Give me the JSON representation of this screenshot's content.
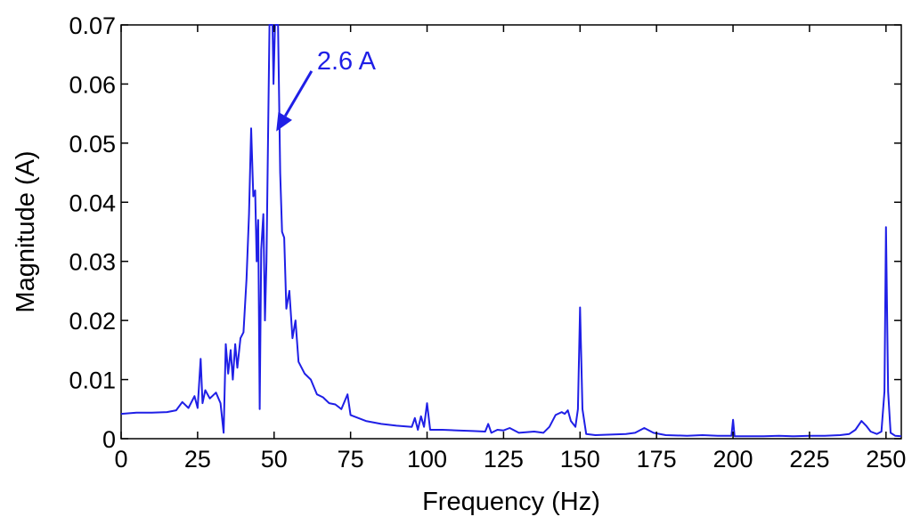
{
  "chart_data": {
    "type": "line",
    "title": "",
    "xlabel": "Frequency (Hz)",
    "ylabel": "Magnitude (A)",
    "xlim": [
      0,
      255
    ],
    "ylim": [
      0,
      0.07
    ],
    "x_ticks": [
      0,
      25,
      50,
      75,
      100,
      125,
      150,
      175,
      200,
      225,
      250
    ],
    "x_tick_labels": [
      "0",
      "25",
      "50",
      "75",
      "100",
      "125",
      "150",
      "175",
      "200",
      "225",
      "250"
    ],
    "y_ticks": [
      0,
      0.01,
      0.02,
      0.03,
      0.04,
      0.05,
      0.06,
      0.07
    ],
    "y_tick_labels": [
      "0",
      "0.01",
      "0.02",
      "0.03",
      "0.04",
      "0.05",
      "0.06",
      "0.07"
    ],
    "grid": false,
    "line_color": "#1f1fe6",
    "annotation": {
      "text": "2.6 A",
      "x": 50.7,
      "y": 0.052,
      "text_x": 64,
      "text_y": 0.0625,
      "color": "#1f1fe6"
    },
    "series": [
      {
        "values": [
          [
            0,
            0.0042
          ],
          [
            5,
            0.0044
          ],
          [
            10,
            0.0044
          ],
          [
            15,
            0.0045
          ],
          [
            18,
            0.0048
          ],
          [
            20,
            0.0062
          ],
          [
            22,
            0.0052
          ],
          [
            24,
            0.0072
          ],
          [
            25,
            0.0052
          ],
          [
            26,
            0.0135
          ],
          [
            26.6,
            0.006
          ],
          [
            27.5,
            0.0082
          ],
          [
            29,
            0.0068
          ],
          [
            31,
            0.0078
          ],
          [
            32.5,
            0.006
          ],
          [
            33.5,
            0.001
          ],
          [
            34.2,
            0.016
          ],
          [
            35,
            0.011
          ],
          [
            35.8,
            0.015
          ],
          [
            36.5,
            0.01
          ],
          [
            37.3,
            0.016
          ],
          [
            38,
            0.012
          ],
          [
            39,
            0.017
          ],
          [
            40,
            0.018
          ],
          [
            41,
            0.027
          ],
          [
            41.8,
            0.038
          ],
          [
            42.5,
            0.0525
          ],
          [
            43.2,
            0.041
          ],
          [
            43.8,
            0.042
          ],
          [
            44.3,
            0.03
          ],
          [
            44.8,
            0.037
          ],
          [
            45.3,
            0.005
          ],
          [
            45.8,
            0.032
          ],
          [
            46.5,
            0.038
          ],
          [
            47,
            0.02
          ],
          [
            47.5,
            0.03
          ],
          [
            48,
            0.05
          ],
          [
            48.5,
            0.07
          ],
          [
            49.5,
            0.07
          ],
          [
            49.8,
            0.06
          ],
          [
            50.3,
            0.07
          ],
          [
            51.3,
            0.07
          ],
          [
            52,
            0.045
          ],
          [
            52.6,
            0.035
          ],
          [
            53.3,
            0.034
          ],
          [
            54,
            0.022
          ],
          [
            55,
            0.025
          ],
          [
            56,
            0.017
          ],
          [
            57,
            0.02
          ],
          [
            58,
            0.013
          ],
          [
            60,
            0.011
          ],
          [
            62,
            0.01
          ],
          [
            64,
            0.0075
          ],
          [
            66,
            0.007
          ],
          [
            68,
            0.006
          ],
          [
            70,
            0.0058
          ],
          [
            72,
            0.005
          ],
          [
            74,
            0.0075
          ],
          [
            75,
            0.004
          ],
          [
            80,
            0.003
          ],
          [
            85,
            0.0025
          ],
          [
            90,
            0.0022
          ],
          [
            95,
            0.002
          ],
          [
            96,
            0.0035
          ],
          [
            97,
            0.0015
          ],
          [
            98,
            0.0038
          ],
          [
            99,
            0.002
          ],
          [
            100,
            0.006
          ],
          [
            101,
            0.0015
          ],
          [
            105,
            0.0015
          ],
          [
            110,
            0.0014
          ],
          [
            115,
            0.0013
          ],
          [
            119,
            0.0012
          ],
          [
            120,
            0.0025
          ],
          [
            121,
            0.001
          ],
          [
            123,
            0.0015
          ],
          [
            125,
            0.0014
          ],
          [
            127,
            0.0018
          ],
          [
            130,
            0.001
          ],
          [
            135,
            0.0012
          ],
          [
            138,
            0.001
          ],
          [
            140,
            0.002
          ],
          [
            142,
            0.004
          ],
          [
            144,
            0.0045
          ],
          [
            145,
            0.0042
          ],
          [
            146,
            0.0048
          ],
          [
            147,
            0.003
          ],
          [
            148.5,
            0.002
          ],
          [
            149.3,
            0.005
          ],
          [
            150,
            0.0222
          ],
          [
            150.8,
            0.005
          ],
          [
            152,
            0.0008
          ],
          [
            155,
            0.0006
          ],
          [
            160,
            0.0007
          ],
          [
            165,
            0.0008
          ],
          [
            168,
            0.001
          ],
          [
            171,
            0.0018
          ],
          [
            174,
            0.001
          ],
          [
            178,
            0.0006
          ],
          [
            185,
            0.0005
          ],
          [
            190,
            0.0006
          ],
          [
            195,
            0.0005
          ],
          [
            199.5,
            0.0005
          ],
          [
            200,
            0.0032
          ],
          [
            200.5,
            0.0004
          ],
          [
            205,
            0.0004
          ],
          [
            210,
            0.0004
          ],
          [
            215,
            0.0005
          ],
          [
            220,
            0.0004
          ],
          [
            225,
            0.0005
          ],
          [
            230,
            0.0005
          ],
          [
            235,
            0.0006
          ],
          [
            238,
            0.0008
          ],
          [
            240,
            0.0015
          ],
          [
            242,
            0.003
          ],
          [
            243.5,
            0.0022
          ],
          [
            245,
            0.0012
          ],
          [
            247,
            0.0008
          ],
          [
            248.5,
            0.0012
          ],
          [
            249.5,
            0.008
          ],
          [
            250,
            0.0358
          ],
          [
            250.7,
            0.008
          ],
          [
            251.5,
            0.001
          ],
          [
            253,
            0.0005
          ],
          [
            255,
            0.0004
          ]
        ]
      }
    ]
  }
}
